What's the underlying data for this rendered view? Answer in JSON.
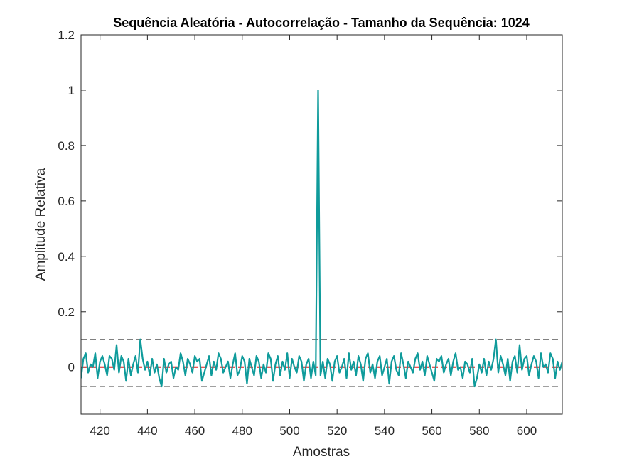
{
  "chart_data": {
    "type": "line",
    "title": "Sequência Aleatória - Autocorrelação - Tamanho da Sequência: 1024",
    "xlabel": "Amostras",
    "ylabel": "Amplitude Relativa",
    "x": [
      412,
      413,
      414,
      415,
      416,
      417,
      418,
      419,
      420,
      421,
      422,
      423,
      424,
      425,
      426,
      427,
      428,
      429,
      430,
      431,
      432,
      433,
      434,
      435,
      436,
      437,
      438,
      439,
      440,
      441,
      442,
      443,
      444,
      445,
      446,
      447,
      448,
      449,
      450,
      451,
      452,
      453,
      454,
      455,
      456,
      457,
      458,
      459,
      460,
      461,
      462,
      463,
      464,
      465,
      466,
      467,
      468,
      469,
      470,
      471,
      472,
      473,
      474,
      475,
      476,
      477,
      478,
      479,
      480,
      481,
      482,
      483,
      484,
      485,
      486,
      487,
      488,
      489,
      490,
      491,
      492,
      493,
      494,
      495,
      496,
      497,
      498,
      499,
      500,
      501,
      502,
      503,
      504,
      505,
      506,
      507,
      508,
      509,
      510,
      511,
      512,
      513,
      514,
      515,
      516,
      517,
      518,
      519,
      520,
      521,
      522,
      523,
      524,
      525,
      526,
      527,
      528,
      529,
      530,
      531,
      532,
      533,
      534,
      535,
      536,
      537,
      538,
      539,
      540,
      541,
      542,
      543,
      544,
      545,
      546,
      547,
      548,
      549,
      550,
      551,
      552,
      553,
      554,
      555,
      556,
      557,
      558,
      559,
      560,
      561,
      562,
      563,
      564,
      565,
      566,
      567,
      568,
      569,
      570,
      571,
      572,
      573,
      574,
      575,
      576,
      577,
      578,
      579,
      580,
      581,
      582,
      583,
      584,
      585,
      586,
      587,
      588,
      589,
      590,
      591,
      592,
      593,
      594,
      595,
      596,
      597,
      598,
      599,
      600,
      601,
      602,
      603,
      604,
      605,
      606,
      607,
      608,
      609,
      610,
      611,
      612,
      613,
      614,
      615
    ],
    "series": [
      {
        "color": "#0f9b9b",
        "values": [
          -0.04,
          0.03,
          0.05,
          -0.02,
          0.01,
          0.0,
          0.05,
          -0.04,
          0.02,
          0.04,
          0.01,
          -0.03,
          0.04,
          0.03,
          -0.01,
          0.08,
          -0.02,
          0.04,
          0.02,
          -0.05,
          0.03,
          -0.03,
          0.01,
          0.04,
          -0.02,
          0.1,
          0.03,
          -0.01,
          0.02,
          -0.03,
          0.03,
          -0.02,
          0.01,
          -0.04,
          -0.07,
          0.03,
          -0.02,
          0.01,
          0.02,
          -0.04,
          0.0,
          -0.01,
          0.05,
          0.02,
          -0.03,
          0.03,
          0.01,
          -0.02,
          0.04,
          0.02,
          0.03,
          -0.05,
          -0.02,
          0.01,
          0.04,
          -0.03,
          0.02,
          -0.01,
          0.05,
          0.03,
          -0.02,
          0.0,
          0.02,
          -0.04,
          0.01,
          0.05,
          -0.03,
          -0.01,
          0.04,
          0.02,
          -0.06,
          0.03,
          0.0,
          -0.03,
          0.04,
          0.02,
          -0.04,
          0.01,
          -0.02,
          0.05,
          0.03,
          -0.05,
          0.01,
          0.04,
          -0.03,
          0.02,
          -0.01,
          0.05,
          -0.04,
          0.03,
          0.0,
          -0.02,
          0.04,
          0.02,
          -0.05,
          0.01,
          0.03,
          -0.04,
          0.02,
          -0.03,
          1,
          -0.03,
          0.02,
          -0.04,
          0.03,
          0.01,
          -0.05,
          0.02,
          0.04,
          -0.02,
          0.0,
          0.03,
          -0.04,
          0.05,
          -0.01,
          0.02,
          -0.03,
          0.04,
          0.01,
          -0.05,
          0.03,
          0.05,
          -0.02,
          0.01,
          -0.04,
          0.02,
          0.04,
          -0.03,
          0.0,
          0.03,
          -0.06,
          0.02,
          0.04,
          -0.01,
          -0.03,
          0.05,
          0.01,
          -0.04,
          0.02,
          0.0,
          -0.02,
          0.03,
          0.05,
          -0.01,
          0.02,
          -0.03,
          0.04,
          0.01,
          -0.02,
          -0.05,
          0.03,
          0.02,
          0.04,
          -0.02,
          0.01,
          0.03,
          -0.03,
          0.02,
          0.05,
          -0.01,
          0.0,
          -0.04,
          0.02,
          0.01,
          -0.02,
          0.03,
          -0.07,
          -0.04,
          0.01,
          -0.02,
          0.03,
          -0.03,
          0.02,
          -0.01,
          0.03,
          0.1,
          -0.02,
          0.04,
          0.01,
          -0.03,
          0.03,
          -0.05,
          0.02,
          0.04,
          -0.02,
          0.08,
          -0.01,
          0.03,
          0.04,
          -0.03,
          0.01,
          0.04,
          0.02,
          -0.04,
          0.05,
          0.0,
          0.01,
          -0.02,
          0.05,
          0.03,
          -0.04,
          0.02,
          -0.01,
          0.02
        ]
      }
    ],
    "reference_lines": [
      {
        "value": 0,
        "color": "#e41a1c"
      },
      {
        "value": 0.1,
        "color": "#808080"
      },
      {
        "value": -0.07,
        "color": "#808080"
      }
    ],
    "xlim": [
      412,
      615
    ],
    "ylim": [
      -0.17,
      1.2
    ],
    "xticks": [
      420,
      440,
      460,
      480,
      500,
      520,
      540,
      560,
      580,
      600
    ],
    "yticks": [
      0,
      0.2,
      0.4,
      0.6,
      0.8,
      1,
      1.2
    ]
  }
}
